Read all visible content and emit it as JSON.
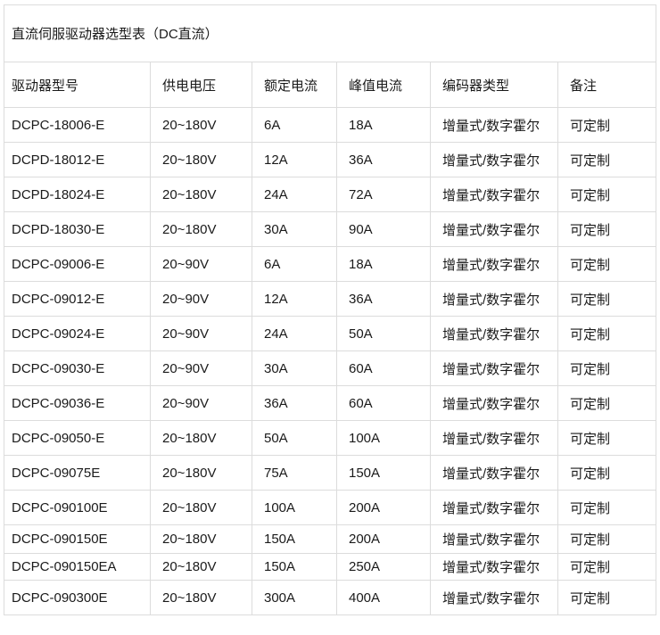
{
  "title": "直流伺服驱动器选型表（DC直流）",
  "table": {
    "columns": [
      "驱动器型号",
      "供电电压",
      "额定电流",
      "峰值电流",
      "编码器类型",
      "备注"
    ],
    "rows": [
      [
        "DCPC-18006-E",
        "20~180V",
        "6A",
        "18A",
        "增量式/数字霍尔",
        "可定制"
      ],
      [
        "DCPD-18012-E",
        "20~180V",
        "12A",
        "36A",
        "增量式/数字霍尔",
        "可定制"
      ],
      [
        "DCPD-18024-E",
        "20~180V",
        "24A",
        "72A",
        "增量式/数字霍尔",
        "可定制"
      ],
      [
        "DCPD-18030-E",
        "20~180V",
        "30A",
        "90A",
        "增量式/数字霍尔",
        "可定制"
      ],
      [
        "DCPC-09006-E",
        "20~90V",
        "6A",
        "18A",
        "增量式/数字霍尔",
        "可定制"
      ],
      [
        "DCPC-09012-E",
        "20~90V",
        "12A",
        "36A",
        "增量式/数字霍尔",
        "可定制"
      ],
      [
        "DCPC-09024-E",
        "20~90V",
        "24A",
        "50A",
        "增量式/数字霍尔",
        "可定制"
      ],
      [
        "DCPC-09030-E",
        "20~90V",
        "30A",
        "60A",
        "增量式/数字霍尔",
        "可定制"
      ],
      [
        "DCPC-09036-E",
        "20~90V",
        "36A",
        "60A",
        "增量式/数字霍尔",
        "可定制"
      ],
      [
        "DCPC-09050-E",
        "20~180V",
        "50A",
        "100A",
        "增量式/数字霍尔",
        "可定制"
      ],
      [
        "DCPC-09075E",
        "20~180V",
        "75A",
        "150A",
        "增量式/数字霍尔",
        "可定制"
      ],
      [
        "DCPC-090100E",
        "20~180V",
        "100A",
        "200A",
        "增量式/数字霍尔",
        "可定制"
      ],
      [
        "DCPC-090150E",
        "20~180V",
        "150A",
        "200A",
        "增量式/数字霍尔",
        "可定制"
      ],
      [
        "DCPC-090150EA",
        "20~180V",
        "150A",
        "250A",
        "增量式/数字霍尔",
        "可定制"
      ],
      [
        "DCPC-090300E",
        "20~180V",
        "300A",
        "400A",
        "增量式/数字霍尔",
        "可定制"
      ]
    ]
  },
  "colors": {
    "border": "#dcdcdc",
    "text": "#1a1a1a",
    "background": "#ffffff"
  }
}
